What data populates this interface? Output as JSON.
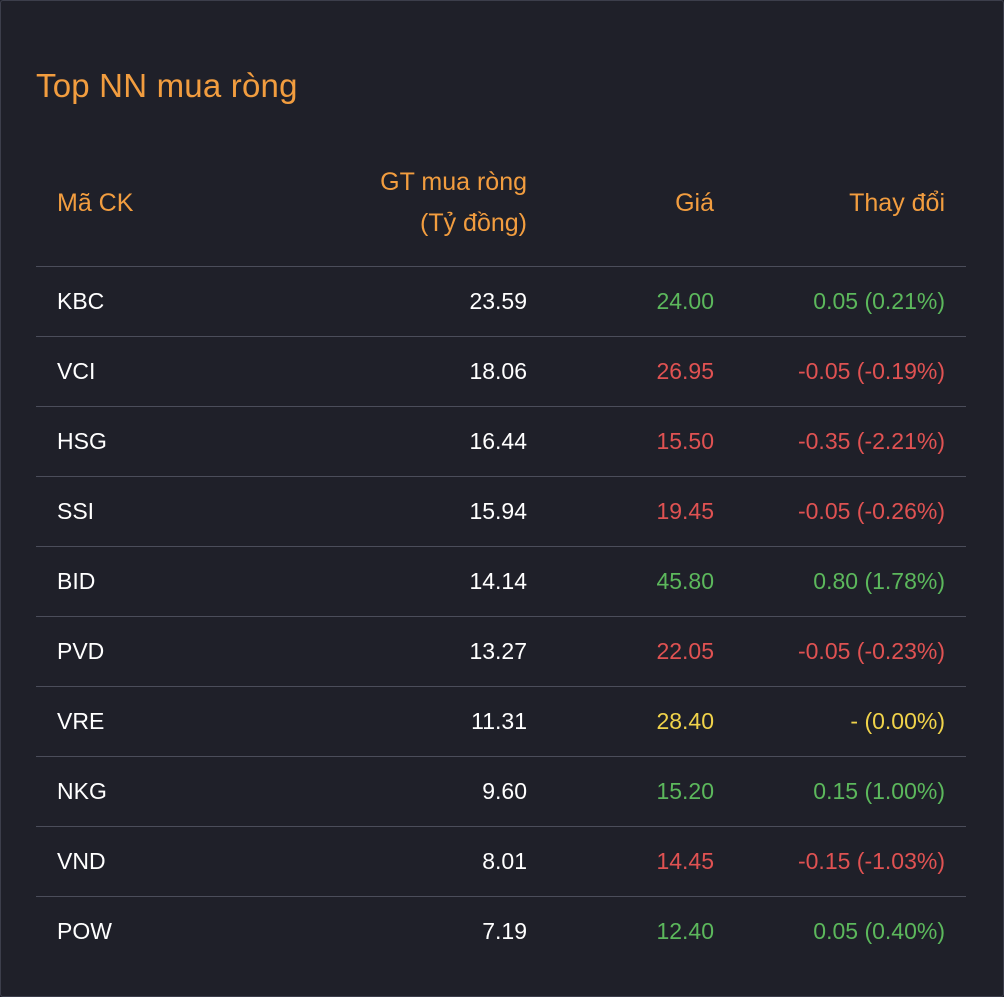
{
  "title": "Top NN mua ròng",
  "colors": {
    "background": "#1f2029",
    "accent": "#f29d3f",
    "up": "#5cb85c",
    "down": "#e05252",
    "unchanged": "#f0d34a",
    "text": "#ffffff",
    "divider": "#4b4d5a"
  },
  "headers": {
    "code": "Mã CK",
    "value_line1": "GT mua ròng",
    "value_line2": "(Tỷ đồng)",
    "price": "Giá",
    "change": "Thay đổi"
  },
  "rows": [
    {
      "code": "KBC",
      "value": "23.59",
      "price": "24.00",
      "change": "0.05 (0.21%)",
      "trend": "up"
    },
    {
      "code": "VCI",
      "value": "18.06",
      "price": "26.95",
      "change": "-0.05 (-0.19%)",
      "trend": "down"
    },
    {
      "code": "HSG",
      "value": "16.44",
      "price": "15.50",
      "change": "-0.35 (-2.21%)",
      "trend": "down"
    },
    {
      "code": "SSI",
      "value": "15.94",
      "price": "19.45",
      "change": "-0.05 (-0.26%)",
      "trend": "down"
    },
    {
      "code": "BID",
      "value": "14.14",
      "price": "45.80",
      "change": "0.80 (1.78%)",
      "trend": "up"
    },
    {
      "code": "PVD",
      "value": "13.27",
      "price": "22.05",
      "change": "-0.05 (-0.23%)",
      "trend": "down"
    },
    {
      "code": "VRE",
      "value": "11.31",
      "price": "28.40",
      "change": "- (0.00%)",
      "trend": "unchanged"
    },
    {
      "code": "NKG",
      "value": "9.60",
      "price": "15.20",
      "change": "0.15 (1.00%)",
      "trend": "up"
    },
    {
      "code": "VND",
      "value": "8.01",
      "price": "14.45",
      "change": "-0.15 (-1.03%)",
      "trend": "down"
    },
    {
      "code": "POW",
      "value": "7.19",
      "price": "12.40",
      "change": "0.05 (0.40%)",
      "trend": "up"
    }
  ]
}
